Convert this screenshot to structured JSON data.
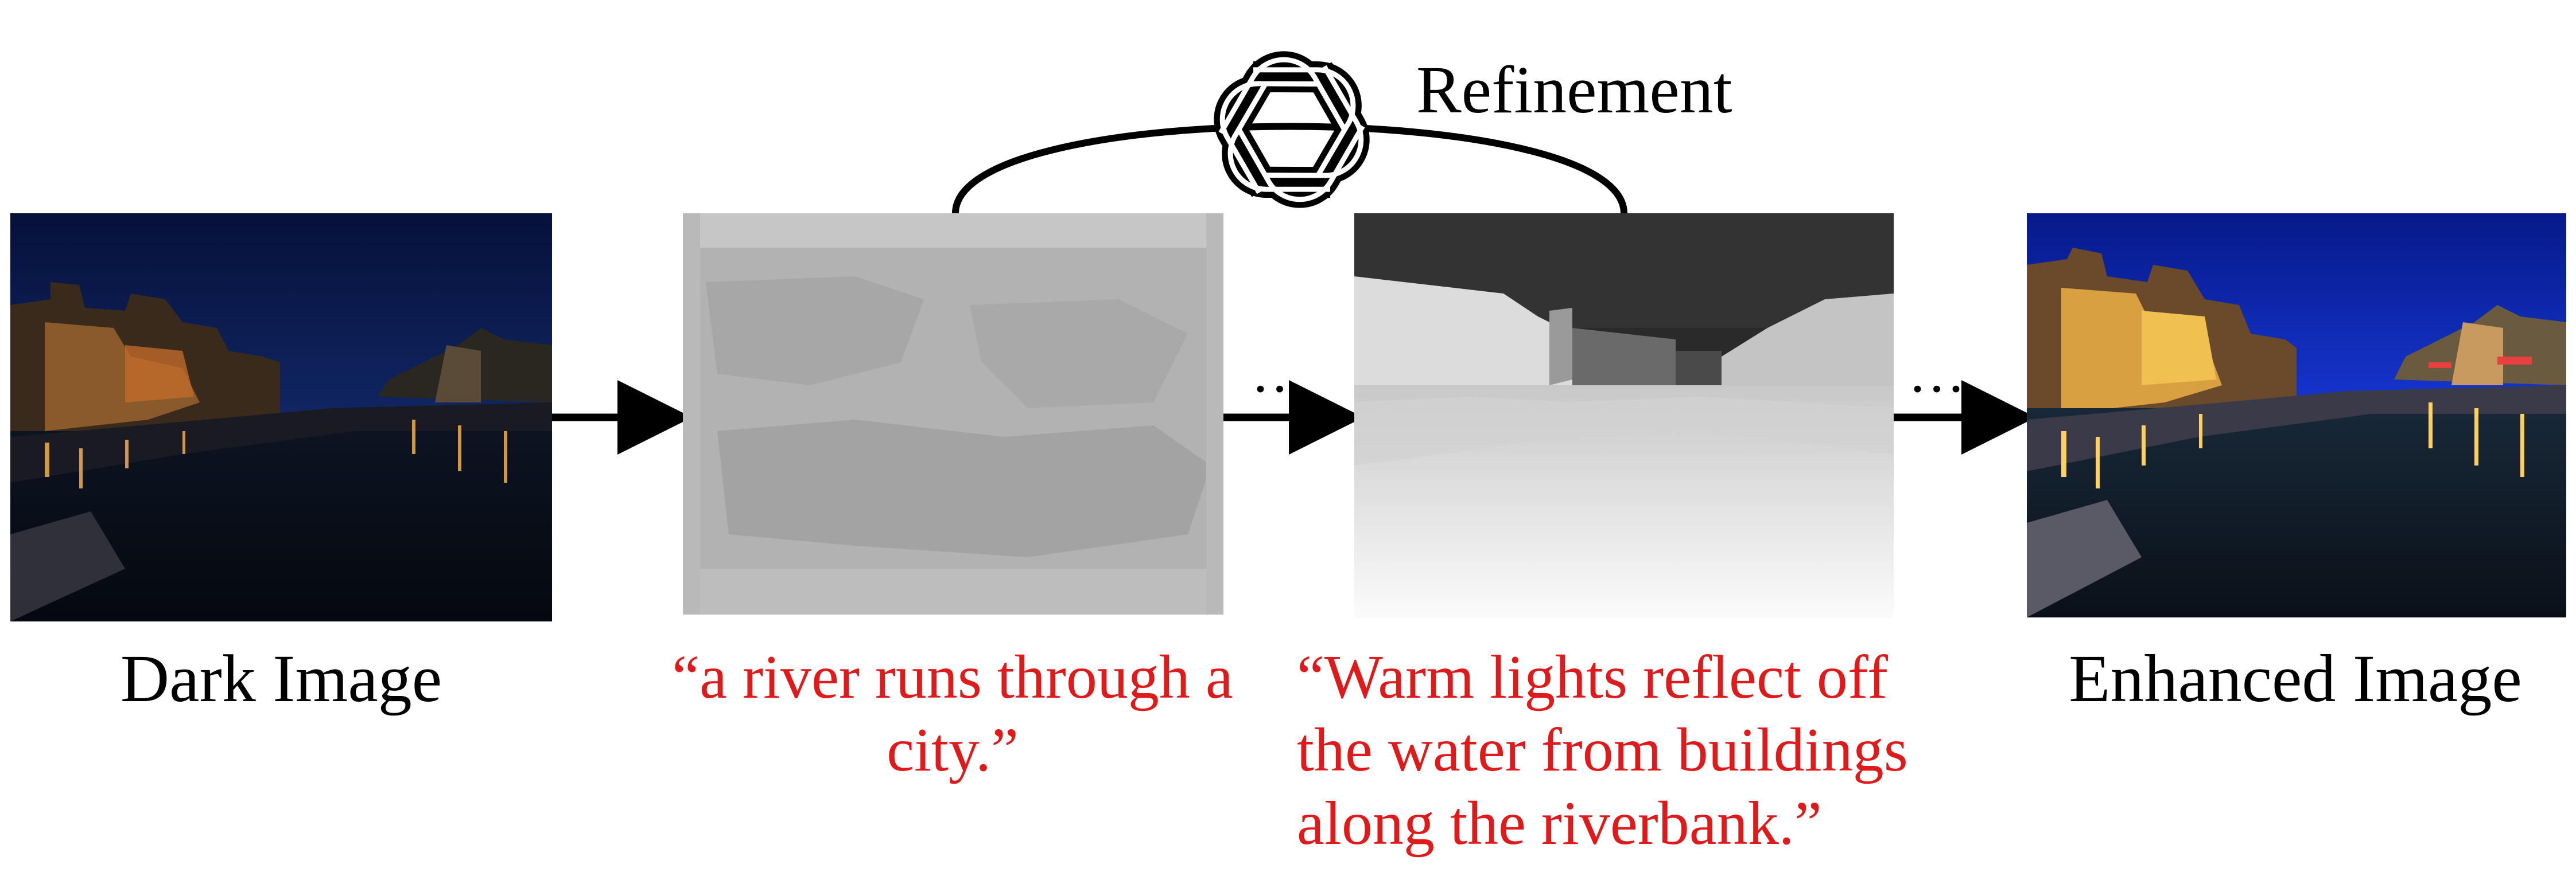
{
  "stages": {
    "dark": {
      "label": "Dark Image"
    },
    "enhanced": {
      "label": "Enhanced Image"
    }
  },
  "refinement": {
    "label": "Refinement",
    "logo_icon": "openai-logo-icon"
  },
  "prompts": {
    "first": [
      "“a river runs through a",
      "city.”"
    ],
    "second": [
      "“Warm lights reflect off",
      "the water from buildings",
      "along the riverbank.”"
    ]
  },
  "ellipsis": [
    "…",
    "…"
  ],
  "colors": {
    "prompt_text": "#e0191b",
    "arrow": "#000000",
    "night_sky": "#0b1a4d",
    "enhanced_sky": "#0a2ad0",
    "attention_gray": "#a9a9a9"
  }
}
